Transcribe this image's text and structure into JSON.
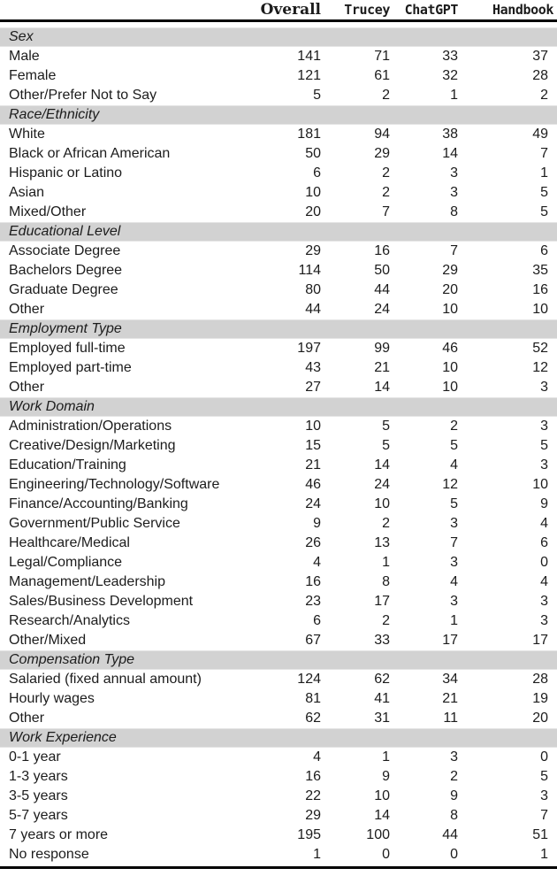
{
  "table": {
    "columns": [
      "Overall",
      "Trucey",
      "ChatGPT",
      "Handbook"
    ],
    "sections": [
      {
        "title": "Sex",
        "rows": [
          {
            "label": "Male",
            "values": [
              141,
              71,
              33,
              37
            ]
          },
          {
            "label": "Female",
            "values": [
              121,
              61,
              32,
              28
            ]
          },
          {
            "label": "Other/Prefer Not to Say",
            "values": [
              5,
              2,
              1,
              2
            ]
          }
        ]
      },
      {
        "title": "Race/Ethnicity",
        "rows": [
          {
            "label": "White",
            "values": [
              181,
              94,
              38,
              49
            ]
          },
          {
            "label": "Black or African American",
            "values": [
              50,
              29,
              14,
              7
            ]
          },
          {
            "label": "Hispanic or Latino",
            "values": [
              6,
              2,
              3,
              1
            ]
          },
          {
            "label": "Asian",
            "values": [
              10,
              2,
              3,
              5
            ]
          },
          {
            "label": "Mixed/Other",
            "values": [
              20,
              7,
              8,
              5
            ]
          }
        ]
      },
      {
        "title": "Educational Level",
        "rows": [
          {
            "label": "Associate Degree",
            "values": [
              29,
              16,
              7,
              6
            ]
          },
          {
            "label": "Bachelors Degree",
            "values": [
              114,
              50,
              29,
              35
            ]
          },
          {
            "label": "Graduate Degree",
            "values": [
              80,
              44,
              20,
              16
            ]
          },
          {
            "label": "Other",
            "values": [
              44,
              24,
              10,
              10
            ]
          }
        ]
      },
      {
        "title": "Employment Type",
        "rows": [
          {
            "label": "Employed full-time",
            "values": [
              197,
              99,
              46,
              52
            ]
          },
          {
            "label": "Employed part-time",
            "values": [
              43,
              21,
              10,
              12
            ]
          },
          {
            "label": "Other",
            "values": [
              27,
              14,
              10,
              3
            ]
          }
        ]
      },
      {
        "title": "Work Domain",
        "rows": [
          {
            "label": "Administration/Operations",
            "values": [
              10,
              5,
              2,
              3
            ]
          },
          {
            "label": "Creative/Design/Marketing",
            "values": [
              15,
              5,
              5,
              5
            ]
          },
          {
            "label": "Education/Training",
            "values": [
              21,
              14,
              4,
              3
            ]
          },
          {
            "label": "Engineering/Technology/Software",
            "values": [
              46,
              24,
              12,
              10
            ]
          },
          {
            "label": "Finance/Accounting/Banking",
            "values": [
              24,
              10,
              5,
              9
            ]
          },
          {
            "label": "Government/Public Service",
            "values": [
              9,
              2,
              3,
              4
            ]
          },
          {
            "label": "Healthcare/Medical",
            "values": [
              26,
              13,
              7,
              6
            ]
          },
          {
            "label": "Legal/Compliance",
            "values": [
              4,
              1,
              3,
              0
            ]
          },
          {
            "label": "Management/Leadership",
            "values": [
              16,
              8,
              4,
              4
            ]
          },
          {
            "label": "Sales/Business Development",
            "values": [
              23,
              17,
              3,
              3
            ]
          },
          {
            "label": "Research/Analytics",
            "values": [
              6,
              2,
              1,
              3
            ]
          },
          {
            "label": "Other/Mixed",
            "values": [
              67,
              33,
              17,
              17
            ]
          }
        ]
      },
      {
        "title": "Compensation Type",
        "rows": [
          {
            "label": "Salaried (fixed annual amount)",
            "values": [
              124,
              62,
              34,
              28
            ]
          },
          {
            "label": "Hourly wages",
            "values": [
              81,
              41,
              21,
              19
            ]
          },
          {
            "label": "Other",
            "values": [
              62,
              31,
              11,
              20
            ]
          }
        ]
      },
      {
        "title": "Work Experience",
        "rows": [
          {
            "label": "0-1 year",
            "values": [
              4,
              1,
              3,
              0
            ]
          },
          {
            "label": "1-3 years",
            "values": [
              16,
              9,
              2,
              5
            ]
          },
          {
            "label": "3-5 years",
            "values": [
              22,
              10,
              9,
              3
            ]
          },
          {
            "label": "5-7 years",
            "values": [
              29,
              14,
              8,
              7
            ]
          },
          {
            "label": "7 years or more",
            "values": [
              195,
              100,
              44,
              51
            ]
          },
          {
            "label": "No response",
            "values": [
              1,
              0,
              0,
              1
            ]
          }
        ]
      }
    ]
  },
  "colors": {
    "section_band": "#d2d2d2",
    "rule": "#000000",
    "text": "#1c1c1c"
  }
}
